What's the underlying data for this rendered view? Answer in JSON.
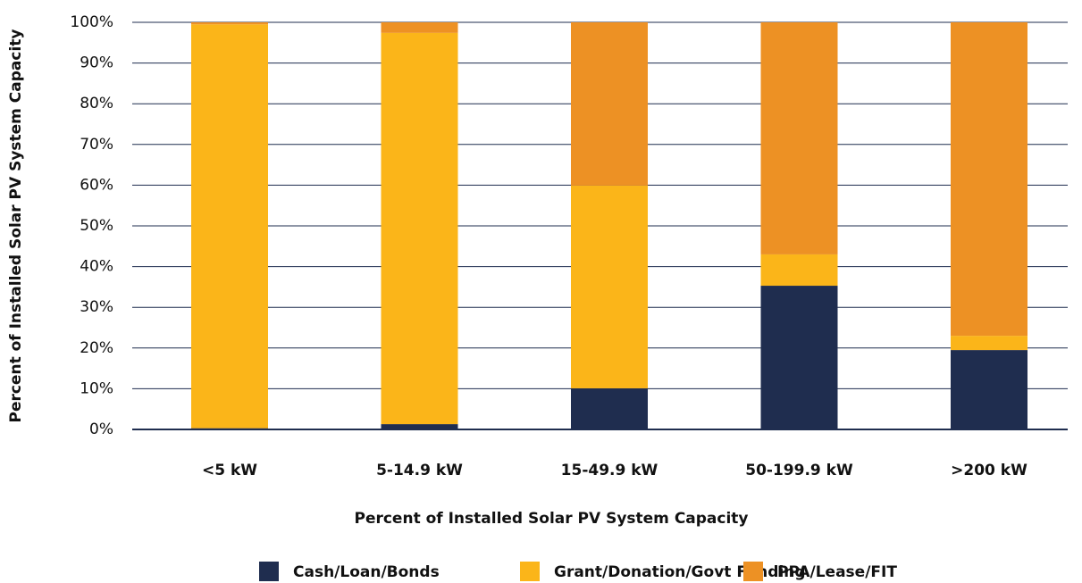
{
  "chart_data": {
    "type": "stacked_bar",
    "categories": [
      "<5 kW",
      "5-14.9 kW",
      "15-49.9 kW",
      "50-199.9 kW",
      ">200 kW"
    ],
    "series": [
      {
        "name": "Cash/Loan/Bonds",
        "color": "#1f2d4f",
        "values": [
          0.3,
          1.3,
          10.1,
          35.3,
          19.5
        ]
      },
      {
        "name": "Grant/Donation/Govt Funding",
        "color": "#fbb519",
        "values": [
          99.2,
          96.1,
          49.8,
          7.7,
          3.5
        ]
      },
      {
        "name": "PPA/Lease/FIT",
        "color": "#ed9124",
        "values": [
          0.5,
          2.6,
          40.1,
          57.0,
          77.0
        ]
      }
    ],
    "xlabel": "Percent of Installed Solar PV System Capacity",
    "ylabel": "Percent of Installed Solar PV System Capacity",
    "ylim": [
      0,
      100
    ],
    "yticks": [
      {
        "value": 0,
        "label": "0%"
      },
      {
        "value": 10,
        "label": "10%"
      },
      {
        "value": 20,
        "label": "20%"
      },
      {
        "value": 30,
        "label": "30%"
      },
      {
        "value": 40,
        "label": "40%"
      },
      {
        "value": 50,
        "label": "50%"
      },
      {
        "value": 60,
        "label": "60%"
      },
      {
        "value": 70,
        "label": "70%"
      },
      {
        "value": 80,
        "label": "80%"
      },
      {
        "value": 90,
        "label": "90%"
      },
      {
        "value": 100,
        "label": "100%"
      }
    ],
    "grid": true,
    "legend": "bottom"
  }
}
